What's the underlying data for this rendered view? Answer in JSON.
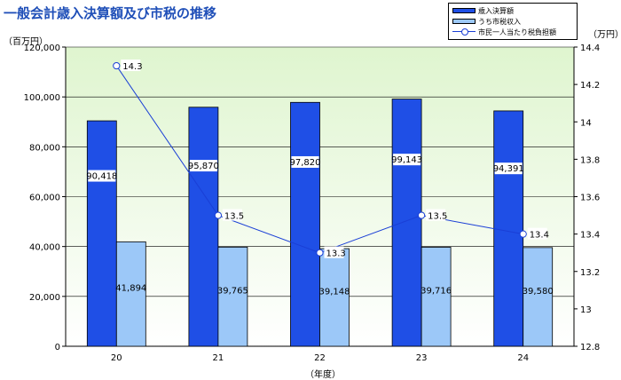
{
  "title": "一般会計歳入決算額及び市税の推移",
  "left_unit": "（百万円）",
  "right_unit": "（万円）",
  "x_axis_label": "（年度）",
  "legend": {
    "series1": "歳入決算額",
    "series2": "うち市税収入",
    "series3": "市民一人当たり税負担額"
  },
  "colors": {
    "bar1": "#1f4fe6",
    "bar2": "#9cc8f8",
    "line": "#1a3fd6",
    "plot_top": "#dff5cf",
    "plot_bottom": "#ffffff"
  },
  "chart_data": {
    "type": "bar",
    "categories": [
      "20",
      "21",
      "22",
      "23",
      "24"
    ],
    "series": [
      {
        "name": "歳入決算額",
        "values": [
          90418,
          95870,
          97820,
          99143,
          94391
        ],
        "labels": [
          "90,418",
          "95,870",
          "97,820",
          "99,143",
          "94,391"
        ]
      },
      {
        "name": "うち市税収入",
        "values": [
          41894,
          39765,
          39148,
          39716,
          39580
        ],
        "labels": [
          "41,894",
          "39,765",
          "39,148",
          "39,716",
          "39,580"
        ]
      },
      {
        "name": "市民一人当たり税負担額",
        "type": "line",
        "axis": "right",
        "values": [
          14.3,
          13.5,
          13.3,
          13.5,
          13.4
        ],
        "labels": [
          "14.3",
          "13.5",
          "13.3",
          "13.5",
          "13.4"
        ]
      }
    ],
    "ylim": [
      0,
      120000
    ],
    "yticks": [
      "0",
      "20,000",
      "40,000",
      "60,000",
      "80,000",
      "100,000",
      "120,000"
    ],
    "y2lim": [
      12.8,
      14.4
    ],
    "y2ticks": [
      "12.8",
      "13",
      "13.2",
      "13.4",
      "13.6",
      "13.8",
      "14",
      "14.2",
      "14.4"
    ],
    "grid": true
  }
}
